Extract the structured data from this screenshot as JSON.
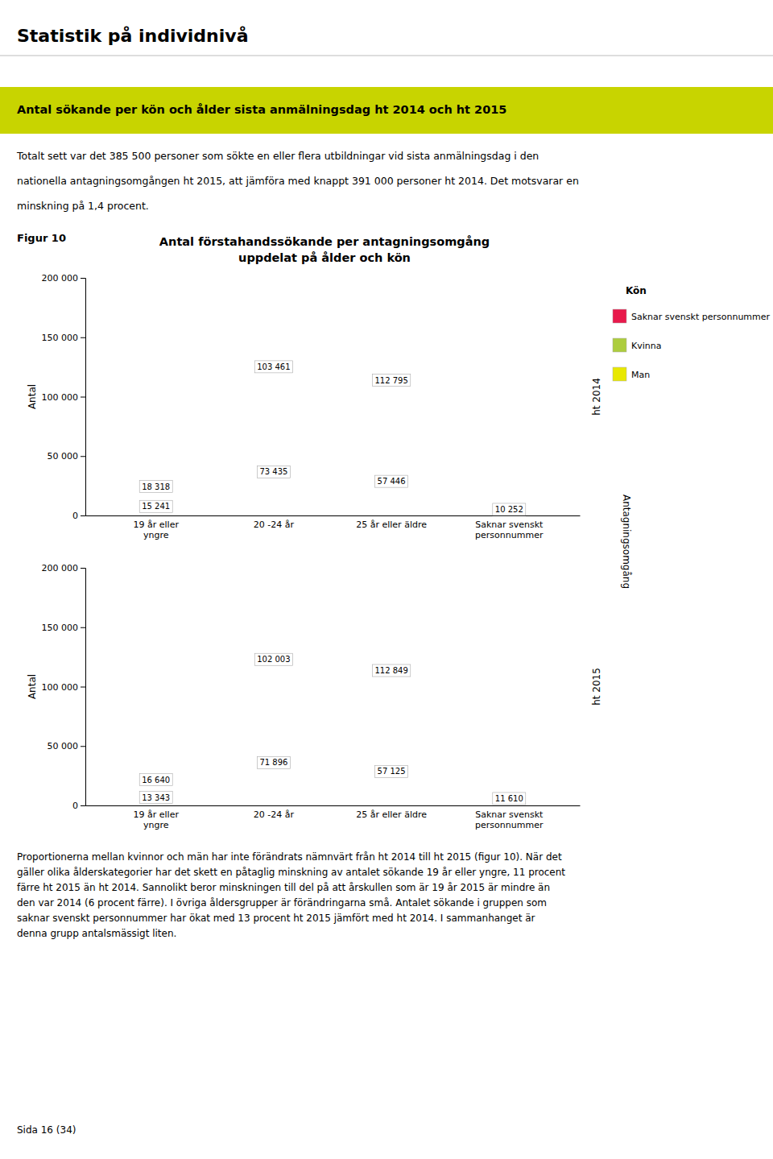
{
  "page_title": "Statistik på individnivå",
  "header_text": "Antal sökande per kön och ålder sista anmälningsdag ht 2014 och ht 2015",
  "header_color": "#C8D400",
  "body_text": [
    "Totalt sett var det 385 500 personer som sökte en eller flera utbildningar vid sista anmälningsdag i den",
    "nationella antagningsomgången ht 2015, att jämföra med knappt 391 000 personer ht 2014. Det motsvarar en",
    "minskning på 1,4 procent."
  ],
  "figure_label": "Figur 10",
  "facet_label": "Antagningsomgång",
  "bottom_text": [
    "Proportionerna mellan kvinnor och män har inte förändrats nämnvärt från ht 2014 till ht 2015 (figur 10). När det",
    "gäller olika ålderskategorier har det skett en påtaglig minskning av antalet sökande 19 år eller yngre, 11 procent",
    "färre ht 2015 än ht 2014. Sannolikt beror minskningen till del på att årskullen som är 19 år 2015 är mindre än",
    "den var 2014 (6 procent färre). I övriga åldersgrupper är förändringarna små. Antalet sökande i gruppen som",
    "saknar svenskt personnummer har ökat med 13 procent ht 2015 jämfört med ht 2014. I sammanhanget är",
    "denna grupp antalsmässigt liten."
  ],
  "page_label": "Sida 16 (34)",
  "chart_data": [
    {
      "type": "bar",
      "title": "Antal förstahandssökande per antagningsomgång",
      "subtitle": "uppdelat på ålder och kön",
      "panel_label": "ht 2014",
      "ylabel": "Antal",
      "legend_title": "Kön",
      "legend": "right",
      "stacked": true,
      "data_labels": true,
      "grid": false,
      "categories": [
        "19 år eller\nyngre",
        "20 -24 år",
        "25 år eller äldre",
        "Saknar svenskt\npersonnummer"
      ],
      "series": [
        {
          "name": "Saknar svenskt personnummer",
          "color": "#E8194B",
          "values": [
            0,
            0,
            0,
            10252
          ],
          "value_labels": [
            null,
            null,
            null,
            "10 252"
          ]
        },
        {
          "name": "Kvinna",
          "color": "#ADCD3E",
          "values": [
            15241,
            73435,
            57446,
            0
          ],
          "value_labels": [
            "15 241",
            "73 435",
            "57 446",
            null
          ]
        },
        {
          "name": "Man",
          "color": "#E8E800",
          "values": [
            18318,
            103461,
            112795,
            0
          ],
          "value_labels": [
            "18 318",
            "103 461",
            "112 795",
            null
          ]
        }
      ],
      "ylim": [
        0,
        200000
      ],
      "yticks": [
        0,
        {
          "value": 50000,
          "label": "50 000"
        },
        {
          "value": 100000,
          "label": "100 000"
        },
        {
          "value": 150000,
          "label": "150 000"
        },
        {
          "value": 200000,
          "label": "200 000"
        }
      ]
    },
    {
      "type": "bar",
      "panel_label": "ht 2015",
      "ylabel": "Antal",
      "stacked": true,
      "data_labels": true,
      "grid": false,
      "categories": [
        "19 år eller\nyngre",
        "20 -24 år",
        "25 år eller äldre",
        "Saknar svenskt\npersonnummer"
      ],
      "series": [
        {
          "name": "Saknar svenskt personnummer",
          "color": "#E8194B",
          "values": [
            0,
            0,
            0,
            11610
          ],
          "value_labels": [
            null,
            null,
            null,
            "11 610"
          ]
        },
        {
          "name": "Kvinna",
          "color": "#ADCD3E",
          "values": [
            13343,
            71896,
            57125,
            0
          ],
          "value_labels": [
            "13 343",
            "71 896",
            "57 125",
            null
          ]
        },
        {
          "name": "Man",
          "color": "#E8E800",
          "values": [
            16640,
            102003,
            112849,
            0
          ],
          "value_labels": [
            "16 640",
            "102 003",
            "112 849",
            null
          ]
        }
      ],
      "ylim": [
        0,
        200000
      ],
      "yticks": [
        0,
        {
          "value": 50000,
          "label": "50 000"
        },
        {
          "value": 100000,
          "label": "100 000"
        },
        {
          "value": 150000,
          "label": "150 000"
        },
        {
          "value": 200000,
          "label": "200 000"
        }
      ]
    }
  ]
}
